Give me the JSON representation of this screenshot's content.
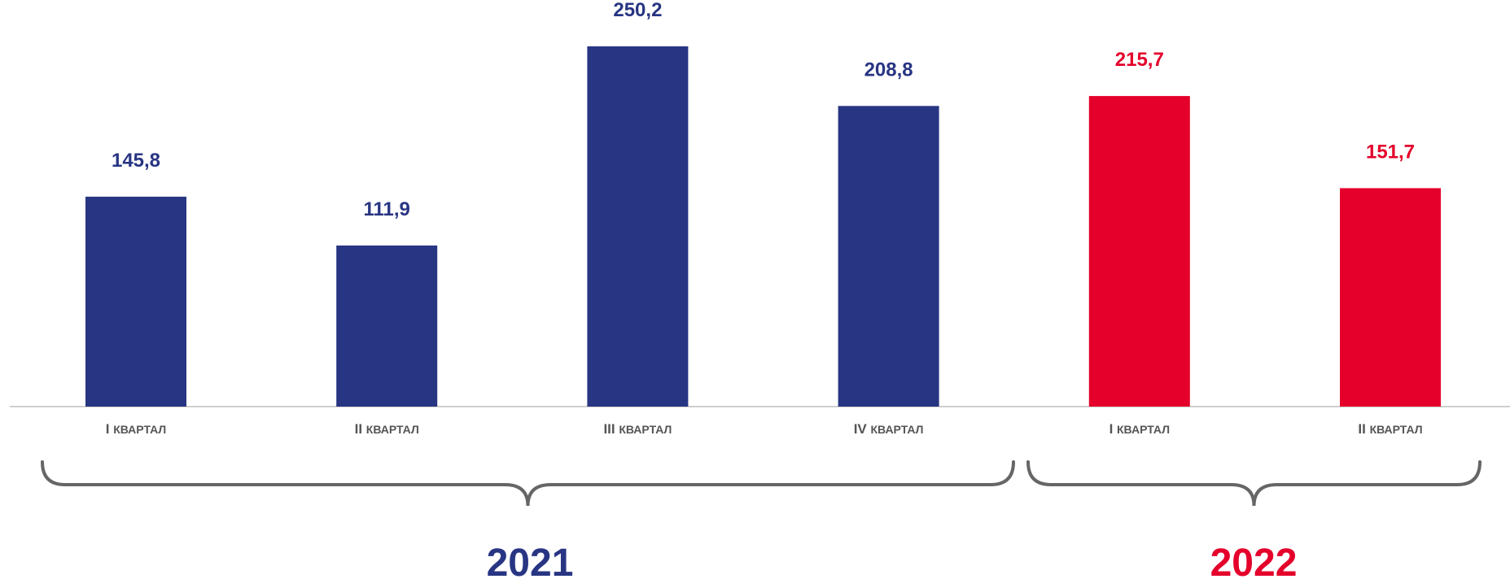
{
  "chart_data": {
    "type": "bar",
    "title": "",
    "xlabel": "",
    "ylabel": "",
    "categories": [
      "I квартал",
      "II квартал",
      "III квартал",
      "IV квартал",
      "I квартал",
      "II квартал"
    ],
    "values": [
      145.8,
      111.9,
      250.2,
      208.8,
      215.7,
      151.7
    ],
    "value_labels": [
      "145,8",
      "111,9",
      "250,2",
      "208,8",
      "215,7",
      "151,7"
    ],
    "ylim": [
      0,
      250.2
    ],
    "grid": false,
    "legend": "none",
    "groups": [
      {
        "label": "2021",
        "color": "#283583",
        "start": 0,
        "end": 3
      },
      {
        "label": "2022",
        "color": "#E4002B",
        "start": 4,
        "end": 5
      }
    ],
    "axis_line_color": "#BFBFBF",
    "brace_color": "#666666"
  }
}
